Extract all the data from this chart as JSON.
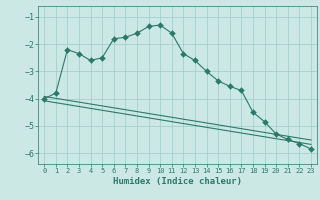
{
  "xlabel": "Humidex (Indice chaleur)",
  "bg_color": "#cce8e4",
  "grid_color": "#99cccc",
  "line_color": "#2a7a6a",
  "xlim": [
    -0.5,
    23.5
  ],
  "ylim": [
    -6.4,
    -0.6
  ],
  "xticks": [
    0,
    1,
    2,
    3,
    4,
    5,
    6,
    7,
    8,
    9,
    10,
    11,
    12,
    13,
    14,
    15,
    16,
    17,
    18,
    19,
    20,
    21,
    22,
    23
  ],
  "yticks": [
    -1,
    -2,
    -3,
    -4,
    -5,
    -6
  ],
  "jagged_x": [
    0,
    1,
    2,
    3,
    4,
    5,
    6,
    7,
    8,
    9,
    10,
    11,
    12,
    13,
    14,
    15,
    16,
    17,
    18,
    19,
    20,
    21,
    22,
    23
  ],
  "jagged_y": [
    -4.0,
    -3.8,
    -2.2,
    -2.35,
    -2.6,
    -2.5,
    -1.8,
    -1.75,
    -1.6,
    -1.35,
    -1.3,
    -1.6,
    -2.35,
    -2.6,
    -3.0,
    -3.35,
    -3.55,
    -3.7,
    -4.5,
    -4.85,
    -5.3,
    -5.5,
    -5.65,
    -5.85
  ],
  "trend1_x": [
    0,
    23
  ],
  "trend1_y": [
    -3.92,
    -5.52
  ],
  "trend2_x": [
    0,
    23
  ],
  "trend2_y": [
    -4.08,
    -5.68
  ],
  "marker_size": 3
}
